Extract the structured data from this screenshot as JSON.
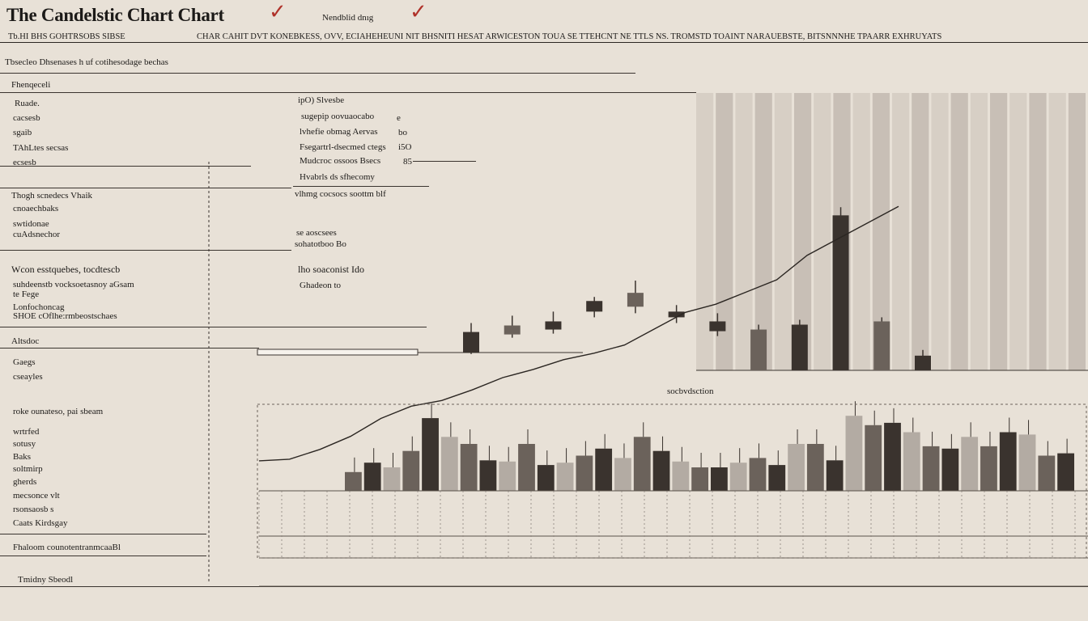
{
  "header": {
    "title": "The Candelstic Chart Chart",
    "top_note": "Nendblid dnıg",
    "left_subtitle": "Tb.HI BHS GOHTRSOBS SIBSE",
    "right_subtitle": "CHAR CAHIT DVT KONEBKESS, OVV, ECIAHEHEUNI NIT BHSNITI HESAT ARWICESTON TOUA SE TTEHCNT NE TTLS NS. TROMSTD TOAINT NARAUEBSTE, BITSNNNHE TPAARR EXHRUYATS",
    "breadcrumb": "Tbsecleo Dhsenases h uf cotihesodage bechas"
  },
  "sidebar": {
    "section_heading": "Fhenqeceli",
    "items": [
      "Ruade.",
      "cacsesb",
      "sgaib",
      "TAhLtes secsas",
      "ecsesb"
    ],
    "group2_title": "Thogh scnedecs Vhaik",
    "group2_items": [
      "cnoaechbaks",
      "swtidonae",
      "cuAdsnechor"
    ],
    "group3_title": "Wcon esstquebes, tocdtescb",
    "group3_items": [
      "suhdeenstb vocksoetasnoy aGsam",
      "te Fege",
      "Lonfochoncag",
      "SHOE cOflhe:rmbeostschaes"
    ],
    "group4_title": "Altsdoc",
    "group4_items": [
      "Gaegs",
      "cseayles"
    ],
    "group5_title": "roke ounateso, pai sbeam",
    "group5_items": [
      "wrtrfed",
      "sotusy",
      "Baks",
      "soltmirp",
      "gherds",
      "mecsonce vlt",
      "rsonsaosb s"
    ],
    "group6_title": "Caats Kirdsgay",
    "footer_label": "Fhaloom counotentranmcaaBl",
    "bottom_label": "Tmidny Sbeodl"
  },
  "midpanel": {
    "items": [
      "ipO) Slvesbe",
      "sugepip oovuaocabo",
      "lvhefie obmag Aervas",
      "Fsegartrl-dsecmed ctegs",
      "Mudcroc ossoos Bsecs",
      "Hvabrls ds sfhecomy",
      "vlhmg cocsocs soottm blf"
    ],
    "side_numbers": [
      "e",
      "bo",
      "i5O",
      "85"
    ],
    "group2_items": [
      "se aoscsees",
      "sohatotboo Bo"
    ],
    "group3_title": "lho soaconist Ido",
    "group3_item": "Ghadeon to"
  },
  "annotation": {
    "label": "socbvdsction"
  },
  "colors": {
    "background": "#e8e1d7",
    "ink": "#1c1a18",
    "accent_check": "#b0322a",
    "candle_dark": "#3a332e",
    "candle_mid": "#6b625b",
    "candle_light": "#b3aba3"
  },
  "chart_data": {
    "type": "candlestick",
    "title": "The Candelstic Chart Chart",
    "upper_candles": [
      {
        "open": 22,
        "close": 47,
        "high": 58,
        "low": 20
      },
      {
        "open": 44,
        "close": 55,
        "high": 67,
        "low": 40
      },
      {
        "open": 50,
        "close": 60,
        "high": 72,
        "low": 45
      },
      {
        "open": 72,
        "close": 85,
        "high": 90,
        "low": 65
      },
      {
        "open": 78,
        "close": 95,
        "high": 110,
        "low": 70
      },
      {
        "open": 65,
        "close": 72,
        "high": 80,
        "low": 58
      },
      {
        "open": 48,
        "close": 60,
        "high": 70,
        "low": 42
      },
      {
        "open": 0,
        "close": 50,
        "high": 56,
        "low": 0
      },
      {
        "open": 0,
        "close": 56,
        "high": 62,
        "low": 0
      },
      {
        "open": 0,
        "close": 190,
        "high": 200,
        "low": 0
      },
      {
        "open": 0,
        "close": 60,
        "high": 65,
        "low": 0
      },
      {
        "open": 0,
        "close": 18,
        "high": 25,
        "low": 0
      }
    ],
    "lower_volumes": [
      16,
      24,
      20,
      34,
      62,
      46,
      40,
      26,
      25,
      40,
      22,
      24,
      30,
      36,
      28,
      46,
      34,
      25,
      20,
      20,
      24,
      28,
      22,
      40,
      40,
      26,
      64,
      56,
      58,
      50,
      38,
      36,
      46,
      38,
      50,
      48,
      30,
      32
    ],
    "trend_line": [
      8,
      10,
      22,
      38,
      60,
      75,
      82,
      95,
      110,
      120,
      132,
      140,
      150,
      170,
      190,
      200,
      215,
      230,
      260,
      280,
      300,
      320
    ],
    "ylim": [
      0,
      340
    ]
  }
}
